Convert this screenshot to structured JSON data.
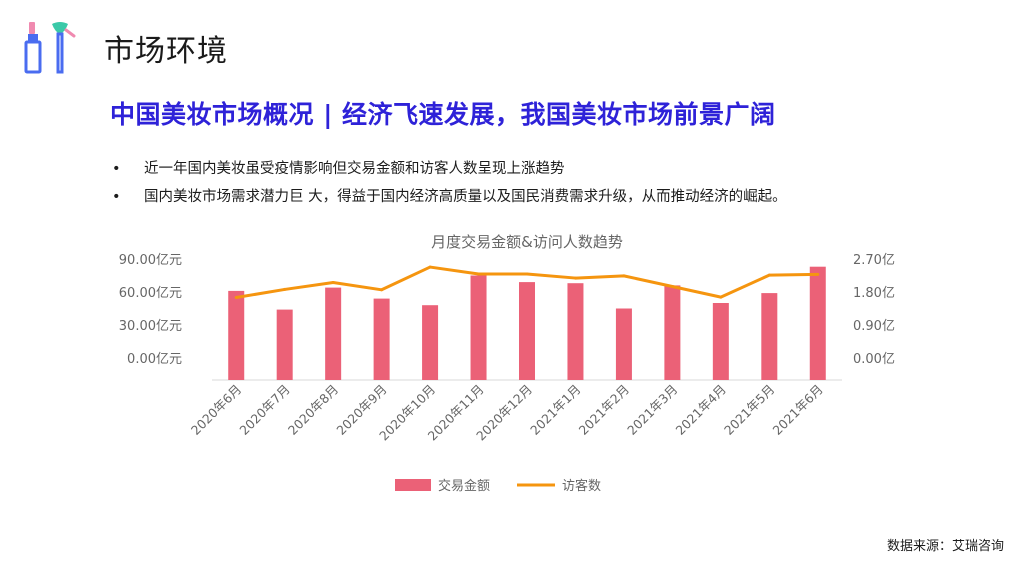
{
  "page": {
    "title": "市场环境",
    "headline": "中国美妆市场概况 | 经济飞速发展，我国美妆市场前景广阔",
    "bullets": [
      "近一年国内美妆虽受疫情影响但交易金额和访客人数呈现上涨趋势",
      "国内美妆市场需求潜力巨 大，得益于国内经济高质量以及国民消费需求升级，从而推动经济的崛起。"
    ],
    "bullet_glyph": "•",
    "source": "数据来源：艾瑞咨询",
    "logo_icon": "lipstick-and-brush-icon"
  },
  "colors": {
    "headline": "#2e22d8",
    "bar": "#eb6177",
    "line": "#f5950f",
    "axis_text": "#666666"
  },
  "chart_data": {
    "type": "bar",
    "title": "月度交易金额&访问人数趋势",
    "categories": [
      "2020年6月",
      "2020年7月",
      "2020年8月",
      "2020年9月",
      "2020年10月",
      "2020年11月",
      "2020年12月",
      "2021年1月",
      "2021年2月",
      "2021年3月",
      "2021年4月",
      "2021年5月",
      "2021年6月"
    ],
    "series": [
      {
        "name": "交易金额",
        "type": "bar",
        "axis": "left",
        "values": [
          61,
          44,
          64,
          54,
          48,
          75,
          69,
          68,
          45,
          66,
          50,
          59,
          83
        ]
      },
      {
        "name": "访客数",
        "type": "line",
        "axis": "right",
        "values": [
          1.65,
          1.87,
          2.06,
          1.86,
          2.48,
          2.29,
          2.29,
          2.18,
          2.24,
          1.95,
          1.66,
          2.26,
          2.28
        ]
      }
    ],
    "y_left": {
      "ticks": [
        "0.00亿元",
        "30.00亿元",
        "60.00亿元",
        "90.00亿元"
      ],
      "tick_values": [
        0,
        30,
        60,
        90
      ]
    },
    "y_right": {
      "ticks": [
        "0.00亿",
        "0.90亿",
        "1.80亿",
        "2.70亿"
      ],
      "tick_values": [
        0,
        0.9,
        1.8,
        2.7
      ]
    },
    "grid": false,
    "legend": "bottom"
  }
}
